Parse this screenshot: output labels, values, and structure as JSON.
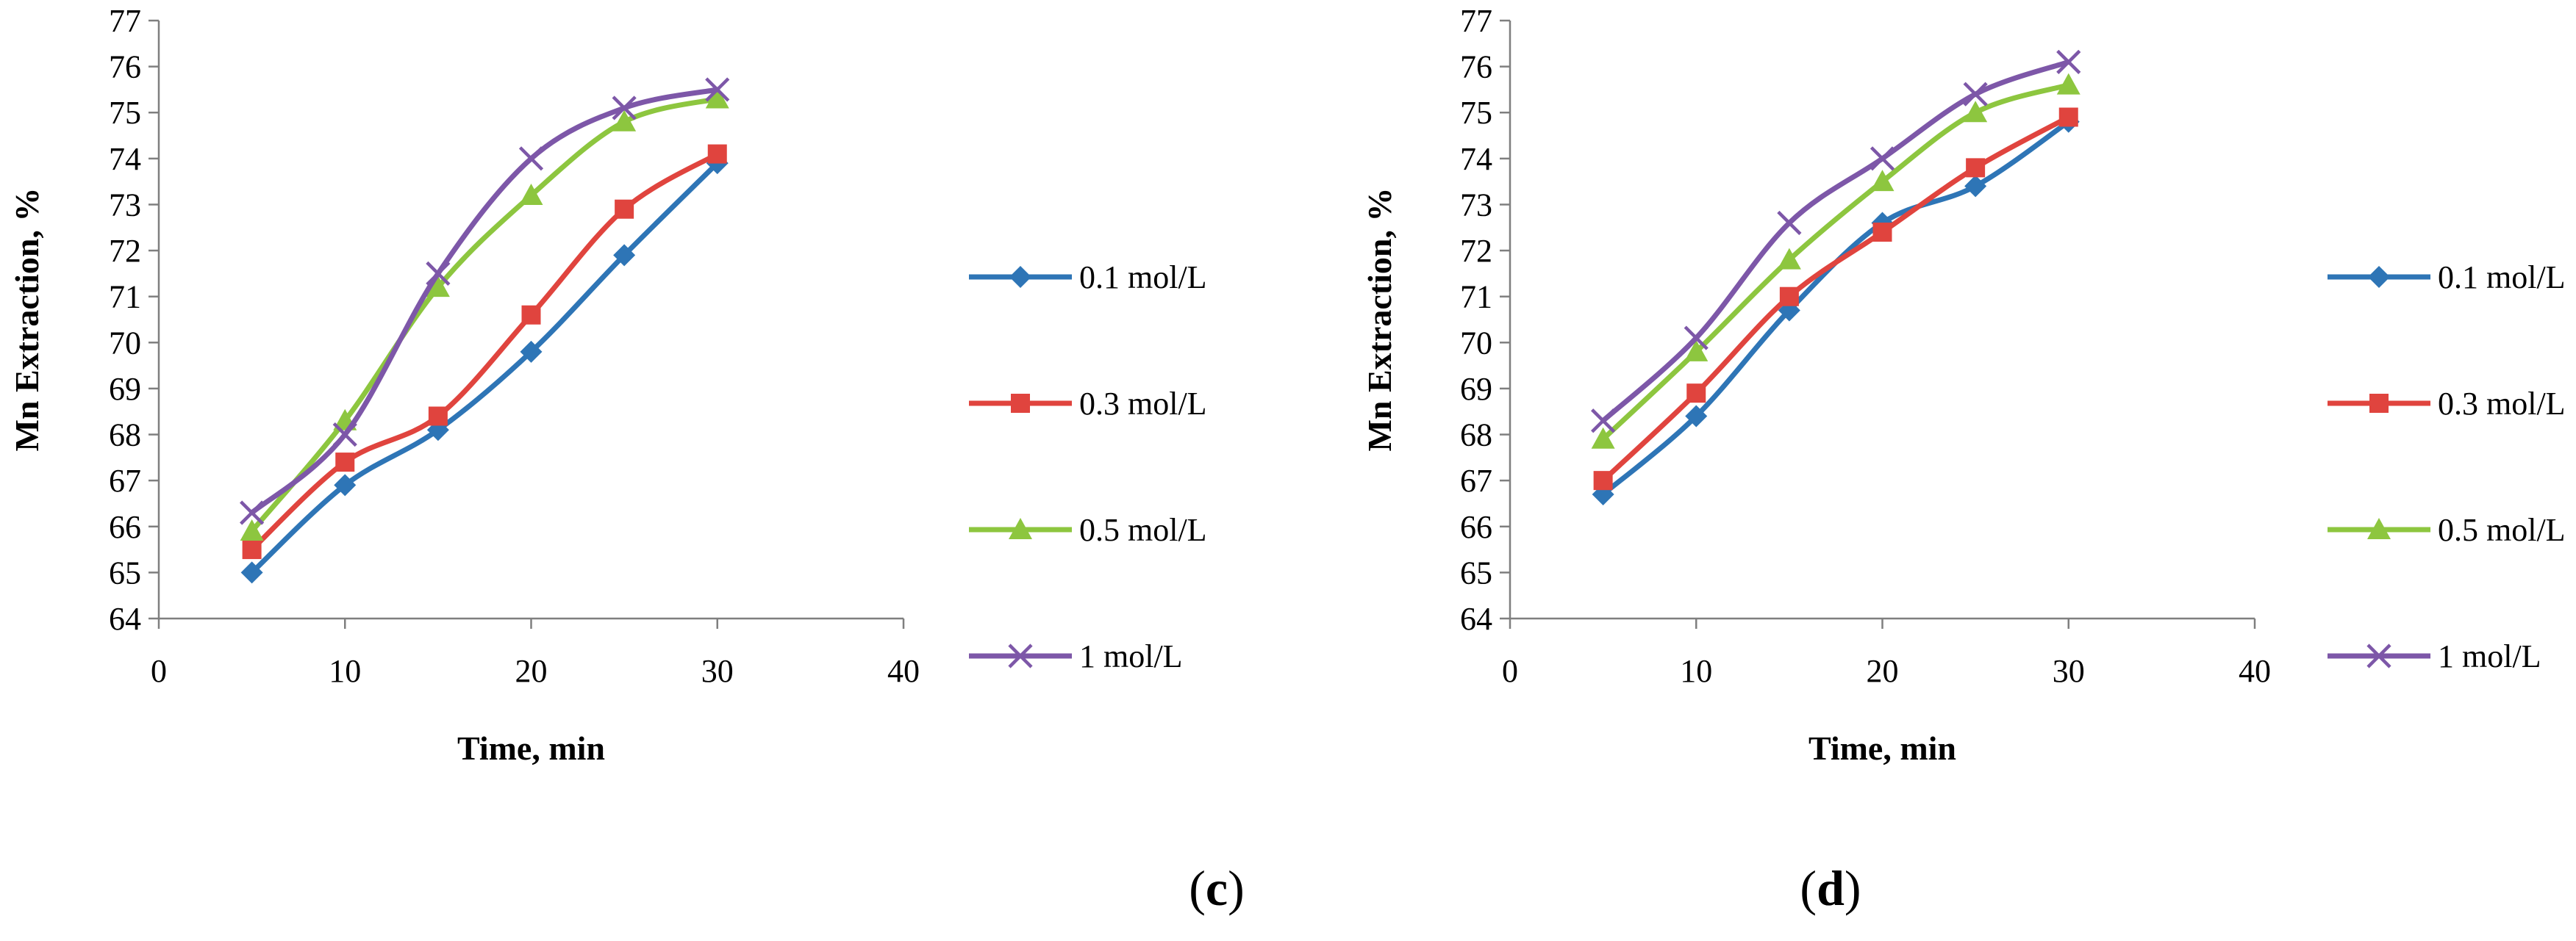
{
  "figure": {
    "panels": [
      {
        "id": "c",
        "open": "(",
        "letter": "c",
        "close": ")"
      },
      {
        "id": "d",
        "open": "(",
        "letter": "d",
        "close": ")"
      }
    ]
  },
  "chart_data": [
    {
      "type": "line",
      "panel": "c",
      "xlabel": "Time, min",
      "ylabel": "Mn Extraction,  %",
      "xlim": [
        0,
        40
      ],
      "ylim": [
        64,
        77
      ],
      "xticks": [
        0,
        10,
        20,
        30,
        40
      ],
      "yticks": [
        64,
        65,
        66,
        67,
        68,
        69,
        70,
        71,
        72,
        73,
        74,
        75,
        76,
        77
      ],
      "x": [
        5,
        10,
        15,
        20,
        25,
        30
      ],
      "series": [
        {
          "name": "0.1 mol/L",
          "color": "#2E75B6",
          "marker": "diamond",
          "values": [
            65.0,
            66.9,
            68.1,
            69.8,
            71.9,
            73.9
          ]
        },
        {
          "name": "0.3 mol/L",
          "color": "#E0443E",
          "marker": "square",
          "values": [
            65.5,
            67.4,
            68.4,
            70.6,
            72.9,
            74.1
          ]
        },
        {
          "name": "0.5 mol/L",
          "color": "#8DC63F",
          "marker": "triangle",
          "values": [
            65.9,
            68.3,
            71.2,
            73.2,
            74.8,
            75.3
          ]
        },
        {
          "name": "1 mol/L",
          "color": "#7D57A8",
          "marker": "x",
          "values": [
            66.3,
            68.0,
            71.5,
            74.0,
            75.1,
            75.5
          ]
        }
      ]
    },
    {
      "type": "line",
      "panel": "d",
      "xlabel": "Time, min",
      "ylabel": "Mn Extraction,  %",
      "xlim": [
        0,
        40
      ],
      "ylim": [
        64,
        77
      ],
      "xticks": [
        0,
        10,
        20,
        30,
        40
      ],
      "yticks": [
        64,
        65,
        66,
        67,
        68,
        69,
        70,
        71,
        72,
        73,
        74,
        75,
        76,
        77
      ],
      "x": [
        5,
        10,
        15,
        20,
        25,
        30
      ],
      "series": [
        {
          "name": "0.1 mol/L",
          "color": "#2E75B6",
          "marker": "diamond",
          "values": [
            66.7,
            68.4,
            70.7,
            72.6,
            73.4,
            74.8
          ]
        },
        {
          "name": "0.3 mol/L",
          "color": "#E0443E",
          "marker": "square",
          "values": [
            67.0,
            68.9,
            71.0,
            72.4,
            73.8,
            74.9
          ]
        },
        {
          "name": "0.5 mol/L",
          "color": "#8DC63F",
          "marker": "triangle",
          "values": [
            67.9,
            69.8,
            71.8,
            73.5,
            75.0,
            75.6
          ]
        },
        {
          "name": "1 mol/L",
          "color": "#7D57A8",
          "marker": "x",
          "values": [
            68.3,
            70.1,
            72.6,
            74.0,
            75.4,
            76.1
          ]
        }
      ]
    }
  ]
}
